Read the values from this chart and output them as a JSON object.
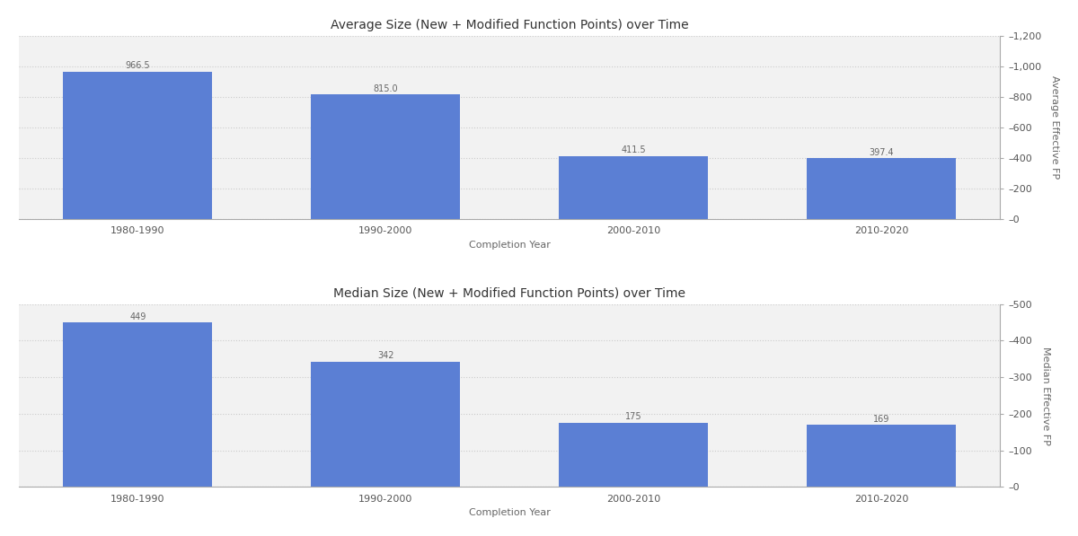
{
  "categories": [
    "1980-1990",
    "1990-2000",
    "2000-2010",
    "2010-2020"
  ],
  "avg_values": [
    966.5,
    815.0,
    411.5,
    397.4
  ],
  "med_values": [
    449,
    342,
    175,
    169
  ],
  "bar_color": "#5B7FD4",
  "avg_title": "Average Size (New + Modified Function Points) over Time",
  "med_title": "Median Size (New + Modified Function Points) over Time",
  "xlabel": "Completion Year",
  "avg_ylabel": "Average Effective FP",
  "med_ylabel": "Median Effective FP",
  "avg_ylim": [
    0,
    1200
  ],
  "med_ylim": [
    0,
    500
  ],
  "avg_yticks": [
    0,
    200,
    400,
    600,
    800,
    1000,
    1200
  ],
  "med_yticks": [
    0,
    100,
    200,
    300,
    400,
    500
  ],
  "background_color": "#f2f2f2",
  "grid_color": "#cccccc",
  "title_fontsize": 10,
  "label_fontsize": 8,
  "tick_fontsize": 8,
  "value_label_fontsize": 7
}
